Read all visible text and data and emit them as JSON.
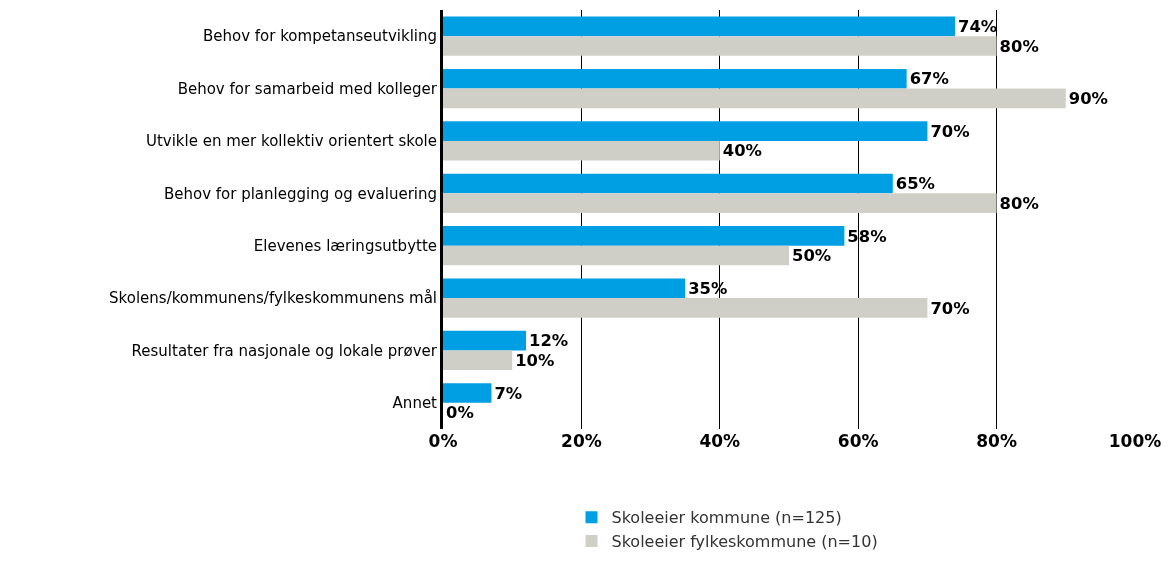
{
  "chart_data": {
    "type": "bar",
    "orientation": "horizontal",
    "categories": [
      "Behov for kompetanseutvikling",
      "Behov for samarbeid med kolleger",
      "Utvikle en mer kollektiv orientert skole",
      "Behov for planlegging og evaluering",
      "Elevenes læringsutbytte",
      "Skolens/kommunens/fylkeskommunens mål",
      "Resultater fra nasjonale og lokale prøver",
      "Annet"
    ],
    "series": [
      {
        "name": "Skoleeier kommune (n=125)",
        "color": "#009fe3",
        "values": [
          74,
          67,
          70,
          65,
          58,
          35,
          12,
          7
        ],
        "value_labels": [
          "74%",
          "67%",
          "70%",
          "65%",
          "58%",
          "35%",
          "12%",
          "7%"
        ]
      },
      {
        "name": "Skoleeier fylkeskommune (n=10)",
        "color": "#d0cfc7",
        "values": [
          80,
          90,
          40,
          80,
          50,
          70,
          10,
          0
        ],
        "value_labels": [
          "80%",
          "90%",
          "40%",
          "80%",
          "50%",
          "70%",
          "10%",
          "0%"
        ]
      }
    ],
    "xlim": [
      0,
      100
    ],
    "xticks": [
      {
        "value": 0,
        "label": "0%"
      },
      {
        "value": 20,
        "label": "20%"
      },
      {
        "value": 40,
        "label": "40%"
      },
      {
        "value": 60,
        "label": "60%"
      },
      {
        "value": 80,
        "label": "80%"
      },
      {
        "value": 100,
        "label": "100%"
      }
    ],
    "grid": "x",
    "legend": "bottom"
  }
}
